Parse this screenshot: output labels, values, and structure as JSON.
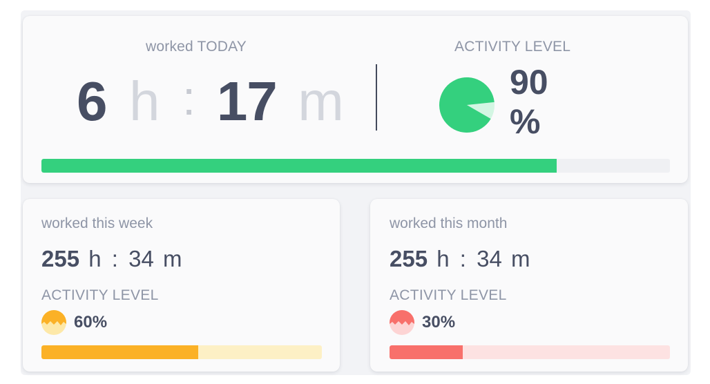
{
  "today": {
    "label": "worked TODAY",
    "hours": "6",
    "hours_unit": "h",
    "separator": ":",
    "minutes": "17",
    "minutes_unit": "m",
    "activity_label": "ACTIVITY LEVEL",
    "activity_value": "90",
    "activity_pct_sign": "%",
    "activity_fraction": 0.9,
    "progress_fraction": 0.82,
    "accent_color": "#34d07e",
    "pie_light_color": "#d3f6e3"
  },
  "week": {
    "label": "worked this week",
    "hours": "255",
    "hours_unit": "h",
    "separator": ":",
    "minutes": "34",
    "minutes_unit": "m",
    "activity_label": "ACTIVITY LEVEL",
    "activity_text": "60%",
    "activity_fraction": 0.6,
    "progress_fraction": 0.56,
    "accent_color": "#fbb126"
  },
  "month": {
    "label": "worked this month",
    "hours": "255",
    "hours_unit": "h",
    "separator": ":",
    "minutes": "34",
    "minutes_unit": "m",
    "activity_label": "ACTIVITY LEVEL",
    "activity_text": "30%",
    "activity_fraction": 0.3,
    "progress_fraction": 0.26,
    "accent_color": "#f8706b"
  }
}
